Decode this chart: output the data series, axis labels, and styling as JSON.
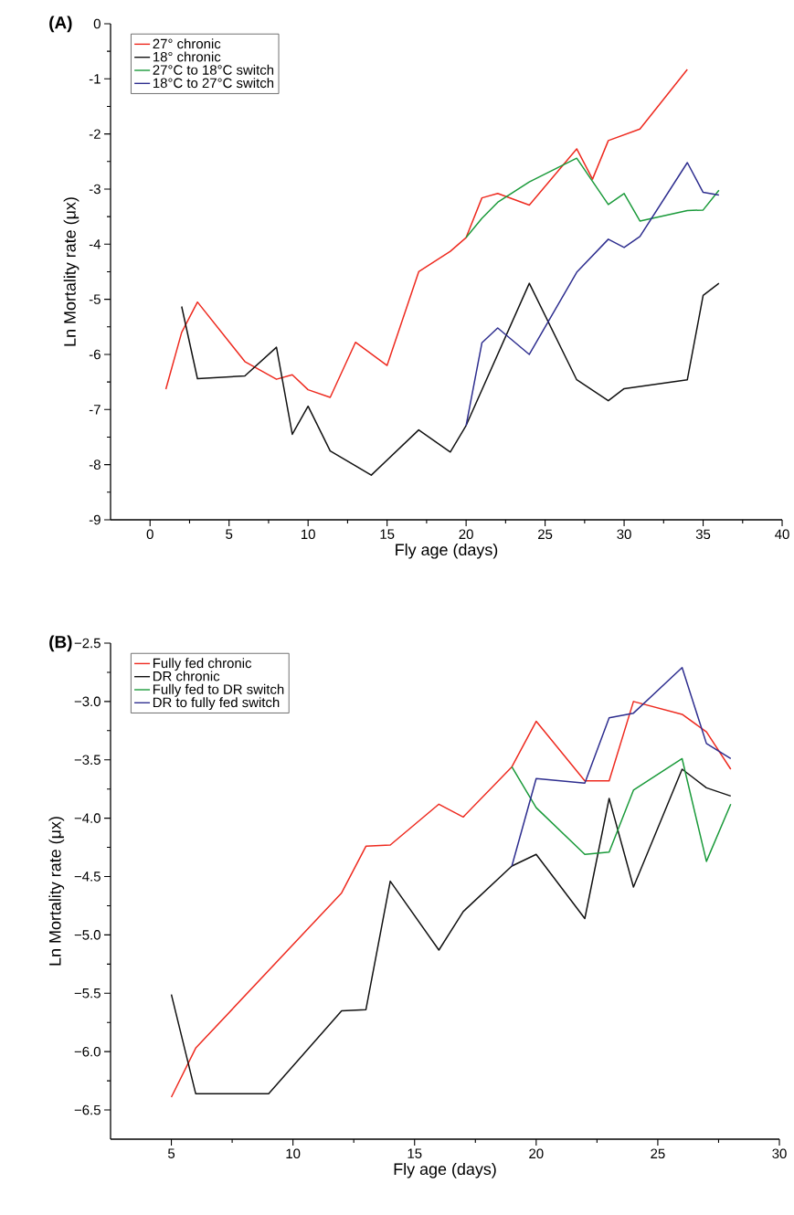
{
  "chart_data": [
    {
      "type": "line",
      "title": "(A)",
      "xlabel": "Fly age (days)",
      "ylabel": "Ln Mortality rate (μx)",
      "xlim": [
        -2.5,
        40
      ],
      "ylim": [
        -9,
        0
      ],
      "xticks": [
        0,
        5,
        10,
        15,
        20,
        25,
        30,
        35,
        40
      ],
      "yticks": [
        -9,
        -8,
        -7,
        -6,
        -5,
        -4,
        -3,
        -2,
        -1,
        0
      ],
      "legend": "top left",
      "series": [
        {
          "name": "27° chronic",
          "color": "#ee2a1f",
          "x": [
            1,
            2,
            3,
            6,
            8,
            9,
            10,
            11.4,
            13,
            15,
            17,
            19,
            20,
            21,
            22,
            24,
            27,
            28,
            29,
            31,
            34
          ],
          "values": [
            -6.63,
            -5.6,
            -5.05,
            -6.13,
            -6.45,
            -6.37,
            -6.64,
            -6.78,
            -5.78,
            -6.2,
            -4.5,
            -4.13,
            -3.88,
            -3.16,
            -3.08,
            -3.29,
            -2.27,
            -2.82,
            -2.12,
            -1.91,
            -0.83
          ]
        },
        {
          "name": "18° chronic",
          "color": "#111111",
          "x": [
            2,
            3,
            6,
            8,
            9,
            10,
            11.4,
            14,
            17,
            19,
            20,
            24,
            27,
            29,
            30,
            34,
            35,
            36
          ],
          "values": [
            -5.13,
            -6.44,
            -6.39,
            -5.87,
            -7.45,
            -6.94,
            -7.75,
            -8.19,
            -7.37,
            -7.77,
            -7.29,
            -4.71,
            -6.46,
            -6.84,
            -6.62,
            -6.46,
            -4.93,
            -4.71
          ]
        },
        {
          "name": "27°C to 18°C switch",
          "color": "#1a9a3a",
          "x": [
            20,
            21,
            22,
            24,
            27,
            29,
            30,
            31,
            34,
            35,
            36
          ],
          "values": [
            -3.88,
            -3.53,
            -3.24,
            -2.87,
            -2.44,
            -3.28,
            -3.08,
            -3.58,
            -3.39,
            -3.38,
            -3.02
          ]
        },
        {
          "name": "18°C to 27°C switch",
          "color": "#2e2e8f",
          "x": [
            20,
            21,
            22,
            24,
            27,
            29,
            30,
            31,
            34,
            35,
            36
          ],
          "values": [
            -7.29,
            -5.79,
            -5.52,
            -6.0,
            -4.51,
            -3.91,
            -4.06,
            -3.86,
            -2.52,
            -3.06,
            -3.11
          ]
        }
      ]
    },
    {
      "type": "line",
      "title": "(B)",
      "xlabel": "Fly age (days)",
      "ylabel": "Ln Mortality rate (μx)",
      "xlim": [
        2.5,
        30
      ],
      "ylim": [
        -6.75,
        -2.5
      ],
      "xticks": [
        5,
        10,
        15,
        20,
        25,
        30
      ],
      "yticks": [
        {
          "value": -6.5,
          "label": "−6.5"
        },
        {
          "value": -6,
          "label": "−6.0"
        },
        {
          "value": -5.5,
          "label": "−5.5"
        },
        {
          "value": -5,
          "label": "−5.0"
        },
        {
          "value": -4.5,
          "label": "−4.5"
        },
        {
          "value": -4,
          "label": "−4.0"
        },
        {
          "value": -3.5,
          "label": "−3.5"
        },
        {
          "value": -3,
          "label": "−3.0"
        },
        {
          "value": -2.5,
          "label": "−2.5"
        }
      ],
      "legend": "top left",
      "series": [
        {
          "name": "Fully fed chronic",
          "color": "#ee2a1f",
          "x": [
            5,
            6,
            12,
            13,
            14,
            16,
            17,
            19,
            20,
            22,
            23,
            24,
            26,
            27,
            28
          ],
          "values": [
            -6.39,
            -5.97,
            -4.64,
            -4.24,
            -4.23,
            -3.88,
            -3.99,
            -3.56,
            -3.17,
            -3.68,
            -3.68,
            -3.0,
            -3.11,
            -3.26,
            -3.58
          ]
        },
        {
          "name": "DR chronic",
          "color": "#111111",
          "x": [
            5,
            6,
            9,
            12,
            13,
            14,
            16,
            17,
            19,
            20,
            22,
            23,
            24,
            26,
            27,
            28
          ],
          "values": [
            -5.51,
            -6.36,
            -6.36,
            -5.65,
            -5.64,
            -4.54,
            -5.13,
            -4.8,
            -4.41,
            -4.31,
            -4.86,
            -3.83,
            -4.59,
            -3.58,
            -3.74,
            -3.81
          ]
        },
        {
          "name": "Fully fed to DR switch",
          "color": "#1a9a3a",
          "x": [
            19,
            20,
            22,
            23,
            24,
            26,
            27,
            28
          ],
          "values": [
            -3.56,
            -3.91,
            -4.31,
            -4.29,
            -3.76,
            -3.49,
            -4.37,
            -3.88
          ]
        },
        {
          "name": "DR to fully fed switch",
          "color": "#2e2e8f",
          "x": [
            19,
            20,
            22,
            23,
            24,
            26,
            27,
            28
          ],
          "values": [
            -4.41,
            -3.66,
            -3.7,
            -3.14,
            -3.1,
            -2.71,
            -3.36,
            -3.49
          ]
        }
      ]
    }
  ]
}
